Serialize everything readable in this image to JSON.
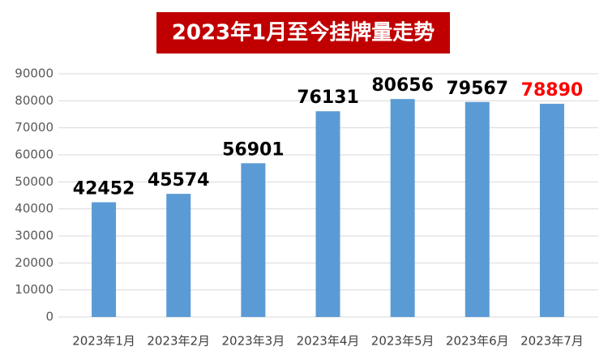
{
  "chart_data": {
    "type": "bar",
    "title": "2023年1月至今挂牌量走势",
    "categories": [
      "2023年1月",
      "2023年2月",
      "2023年3月",
      "2023年4月",
      "2023年5月",
      "2023年6月",
      "2023年7月"
    ],
    "values": [
      42452,
      45574,
      56901,
      76131,
      80656,
      79567,
      78890
    ],
    "color": "#5b9bd5",
    "value_label_colors": [
      "#000000",
      "#000000",
      "#000000",
      "#000000",
      "#000000",
      "#000000",
      "#ff0000"
    ],
    "ylim": [
      0,
      90000
    ],
    "yticks": [
      0,
      10000,
      20000,
      30000,
      40000,
      50000,
      60000,
      70000,
      80000,
      90000
    ],
    "grid": true
  }
}
